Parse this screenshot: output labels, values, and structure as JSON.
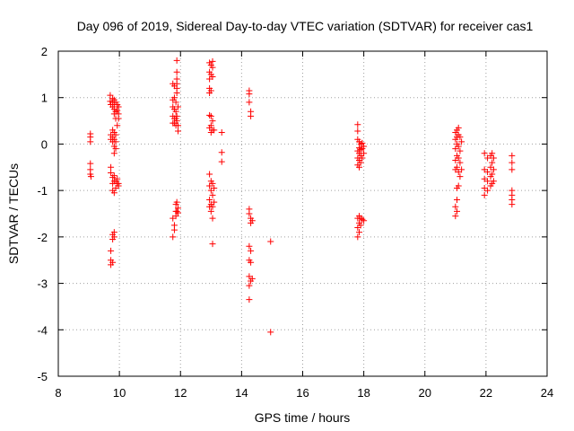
{
  "chart_data": {
    "type": "scatter",
    "title": "Day 096 of 2019, Sidereal Day-to-day VTEC variation (SDTVAR) for receiver cas1",
    "xlabel": "GPS time / hours",
    "ylabel": "SDTVAR / TECUs",
    "xlim": [
      8,
      24
    ],
    "ylim": [
      -5,
      2
    ],
    "xticks": [
      "8",
      "10",
      "12",
      "14",
      "16",
      "18",
      "20",
      "22",
      "24"
    ],
    "yticks": [
      "-5",
      "-4",
      "-3",
      "-2",
      "-1",
      "0",
      "1",
      "2"
    ],
    "grid": true,
    "marker": "plus",
    "color": "#ff0000",
    "series": [
      {
        "name": "SDTVAR",
        "points": [
          [
            9.05,
            0.22
          ],
          [
            9.05,
            0.15
          ],
          [
            9.05,
            0.05
          ],
          [
            9.05,
            -0.42
          ],
          [
            9.05,
            -0.55
          ],
          [
            9.05,
            -0.65
          ],
          [
            9.07,
            -0.7
          ],
          [
            9.7,
            1.05
          ],
          [
            9.7,
            0.92
          ],
          [
            9.72,
            0.85
          ],
          [
            9.72,
            0.2
          ],
          [
            9.72,
            0.1
          ],
          [
            9.72,
            -0.5
          ],
          [
            9.72,
            -0.62
          ],
          [
            9.72,
            -2.3
          ],
          [
            9.72,
            -2.5
          ],
          [
            9.72,
            -2.6
          ],
          [
            9.78,
            0.98
          ],
          [
            9.78,
            0.9
          ],
          [
            9.78,
            0.8
          ],
          [
            9.78,
            0.3
          ],
          [
            9.78,
            0.15
          ],
          [
            9.78,
            0.05
          ],
          [
            9.78,
            -0.72
          ],
          [
            9.78,
            -0.85
          ],
          [
            9.78,
            -1.0
          ],
          [
            9.78,
            -1.95
          ],
          [
            9.78,
            -2.05
          ],
          [
            9.78,
            -2.55
          ],
          [
            9.83,
            0.95
          ],
          [
            9.83,
            0.85
          ],
          [
            9.83,
            0.75
          ],
          [
            9.83,
            0.65
          ],
          [
            9.83,
            0.25
          ],
          [
            9.83,
            0.1
          ],
          [
            9.83,
            -0.05
          ],
          [
            9.83,
            -0.2
          ],
          [
            9.83,
            -0.68
          ],
          [
            9.83,
            -0.8
          ],
          [
            9.83,
            -1.05
          ],
          [
            9.83,
            -1.9
          ],
          [
            9.83,
            -2.0
          ],
          [
            9.88,
            0.9
          ],
          [
            9.88,
            0.7
          ],
          [
            9.88,
            0.55
          ],
          [
            9.88,
            0.2
          ],
          [
            9.88,
            0.05
          ],
          [
            9.88,
            -0.1
          ],
          [
            9.88,
            -0.8
          ],
          [
            9.88,
            -0.95
          ],
          [
            9.93,
            0.85
          ],
          [
            9.93,
            0.72
          ],
          [
            9.93,
            0.4
          ],
          [
            9.93,
            -0.75
          ],
          [
            9.93,
            -0.85
          ],
          [
            9.97,
            0.8
          ],
          [
            9.97,
            0.65
          ],
          [
            9.97,
            0.55
          ],
          [
            9.97,
            -0.85
          ],
          [
            9.97,
            -0.9
          ],
          [
            11.75,
            1.3
          ],
          [
            11.75,
            0.95
          ],
          [
            11.75,
            0.8
          ],
          [
            11.75,
            0.6
          ],
          [
            11.75,
            0.45
          ],
          [
            11.75,
            -1.6
          ],
          [
            11.75,
            -2.0
          ],
          [
            11.8,
            1.25
          ],
          [
            11.8,
            1.0
          ],
          [
            11.8,
            0.75
          ],
          [
            11.8,
            0.55
          ],
          [
            11.8,
            0.45
          ],
          [
            11.8,
            -1.75
          ],
          [
            11.8,
            -1.85
          ],
          [
            11.85,
            0.9
          ],
          [
            11.85,
            0.7
          ],
          [
            11.85,
            0.55
          ],
          [
            11.85,
            0.4
          ],
          [
            11.85,
            -1.3
          ],
          [
            11.85,
            -1.45
          ],
          [
            11.85,
            -1.55
          ],
          [
            11.88,
            1.8
          ],
          [
            11.88,
            1.55
          ],
          [
            11.88,
            1.4
          ],
          [
            11.88,
            1.3
          ],
          [
            11.88,
            1.2
          ],
          [
            11.88,
            1.1
          ],
          [
            11.88,
            0.6
          ],
          [
            11.88,
            0.5
          ],
          [
            11.88,
            -1.25
          ],
          [
            11.88,
            -1.45
          ],
          [
            11.92,
            0.8
          ],
          [
            11.92,
            0.4
          ],
          [
            11.92,
            0.28
          ],
          [
            11.92,
            -1.38
          ],
          [
            11.92,
            -1.48
          ],
          [
            12.95,
            1.75
          ],
          [
            12.95,
            1.55
          ],
          [
            12.95,
            1.4
          ],
          [
            12.95,
            1.2
          ],
          [
            12.95,
            1.1
          ],
          [
            12.95,
            0.62
          ],
          [
            12.95,
            0.35
          ],
          [
            12.95,
            -0.65
          ],
          [
            12.95,
            -0.9
          ],
          [
            12.95,
            -1.2
          ],
          [
            12.95,
            -1.35
          ],
          [
            13.0,
            1.7
          ],
          [
            13.0,
            1.5
          ],
          [
            13.0,
            1.15
          ],
          [
            13.0,
            0.6
          ],
          [
            13.0,
            0.4
          ],
          [
            13.0,
            0.25
          ],
          [
            13.0,
            -0.8
          ],
          [
            13.0,
            -1.0
          ],
          [
            13.0,
            -1.3
          ],
          [
            13.0,
            -1.45
          ],
          [
            13.05,
            1.78
          ],
          [
            13.05,
            1.65
          ],
          [
            13.05,
            1.45
          ],
          [
            13.05,
            0.5
          ],
          [
            13.05,
            0.3
          ],
          [
            13.05,
            -0.85
          ],
          [
            13.05,
            -1.1
          ],
          [
            13.05,
            -1.35
          ],
          [
            13.05,
            -1.6
          ],
          [
            13.05,
            -2.15
          ],
          [
            13.1,
            0.3
          ],
          [
            13.1,
            -0.95
          ],
          [
            13.1,
            -1.25
          ],
          [
            13.35,
            0.25
          ],
          [
            13.35,
            -0.18
          ],
          [
            13.35,
            -0.38
          ],
          [
            14.25,
            1.15
          ],
          [
            14.25,
            1.08
          ],
          [
            14.25,
            0.9
          ],
          [
            14.25,
            -1.4
          ],
          [
            14.25,
            -1.5
          ],
          [
            14.25,
            -2.2
          ],
          [
            14.25,
            -2.5
          ],
          [
            14.25,
            -2.85
          ],
          [
            14.25,
            -3.05
          ],
          [
            14.25,
            -3.35
          ],
          [
            14.3,
            0.7
          ],
          [
            14.3,
            0.6
          ],
          [
            14.3,
            -1.6
          ],
          [
            14.3,
            -1.7
          ],
          [
            14.3,
            -2.3
          ],
          [
            14.3,
            -2.55
          ],
          [
            14.3,
            -2.95
          ],
          [
            14.35,
            -1.65
          ],
          [
            14.35,
            -2.9
          ],
          [
            14.95,
            -2.1
          ],
          [
            14.95,
            -4.05
          ],
          [
            17.8,
            0.42
          ],
          [
            17.8,
            0.28
          ],
          [
            17.8,
            0.1
          ],
          [
            17.8,
            -0.15
          ],
          [
            17.8,
            -0.3
          ],
          [
            17.8,
            -0.45
          ],
          [
            17.8,
            -1.6
          ],
          [
            17.8,
            -1.8
          ],
          [
            17.8,
            -2.0
          ],
          [
            17.85,
            0.05
          ],
          [
            17.85,
            -0.08
          ],
          [
            17.85,
            -0.2
          ],
          [
            17.85,
            -0.35
          ],
          [
            17.85,
            -0.5
          ],
          [
            17.85,
            -1.55
          ],
          [
            17.85,
            -1.7
          ],
          [
            17.85,
            -1.9
          ],
          [
            17.9,
            0.0
          ],
          [
            17.9,
            -0.12
          ],
          [
            17.9,
            -0.25
          ],
          [
            17.9,
            -0.4
          ],
          [
            17.9,
            -1.6
          ],
          [
            17.9,
            -1.75
          ],
          [
            17.95,
            0.02
          ],
          [
            17.95,
            -0.1
          ],
          [
            17.95,
            -0.3
          ],
          [
            17.95,
            -1.62
          ],
          [
            18.0,
            -0.05
          ],
          [
            18.0,
            -0.2
          ],
          [
            18.0,
            -1.65
          ],
          [
            21.0,
            0.25
          ],
          [
            21.0,
            0.1
          ],
          [
            21.0,
            -0.1
          ],
          [
            21.0,
            -0.35
          ],
          [
            21.0,
            -0.55
          ],
          [
            21.0,
            -1.35
          ],
          [
            21.0,
            -1.55
          ],
          [
            21.05,
            0.3
          ],
          [
            21.05,
            0.15
          ],
          [
            21.05,
            0.0
          ],
          [
            21.05,
            -0.25
          ],
          [
            21.05,
            -0.5
          ],
          [
            21.05,
            -0.95
          ],
          [
            21.05,
            -1.2
          ],
          [
            21.05,
            -1.45
          ],
          [
            21.1,
            0.35
          ],
          [
            21.1,
            0.2
          ],
          [
            21.1,
            -0.05
          ],
          [
            21.1,
            -0.3
          ],
          [
            21.1,
            -0.6
          ],
          [
            21.1,
            -0.9
          ],
          [
            21.15,
            0.15
          ],
          [
            21.15,
            -0.15
          ],
          [
            21.15,
            -0.4
          ],
          [
            21.15,
            -0.7
          ],
          [
            21.2,
            0.05
          ],
          [
            21.2,
            -0.55
          ],
          [
            21.95,
            -0.2
          ],
          [
            21.95,
            -0.55
          ],
          [
            21.95,
            -0.75
          ],
          [
            21.95,
            -0.95
          ],
          [
            21.95,
            -1.1
          ],
          [
            22.05,
            -0.3
          ],
          [
            22.05,
            -0.6
          ],
          [
            22.05,
            -0.8
          ],
          [
            22.05,
            -1.0
          ],
          [
            22.15,
            -0.25
          ],
          [
            22.15,
            -0.5
          ],
          [
            22.15,
            -0.7
          ],
          [
            22.15,
            -0.9
          ],
          [
            22.2,
            -0.2
          ],
          [
            22.2,
            -0.4
          ],
          [
            22.2,
            -0.65
          ],
          [
            22.2,
            -0.85
          ],
          [
            22.25,
            -0.3
          ],
          [
            22.25,
            -0.55
          ],
          [
            22.25,
            -0.8
          ],
          [
            22.85,
            -0.25
          ],
          [
            22.85,
            -0.4
          ],
          [
            22.85,
            -0.55
          ],
          [
            22.85,
            -1.0
          ],
          [
            22.85,
            -1.1
          ],
          [
            22.85,
            -1.2
          ],
          [
            22.85,
            -1.3
          ]
        ]
      }
    ]
  }
}
